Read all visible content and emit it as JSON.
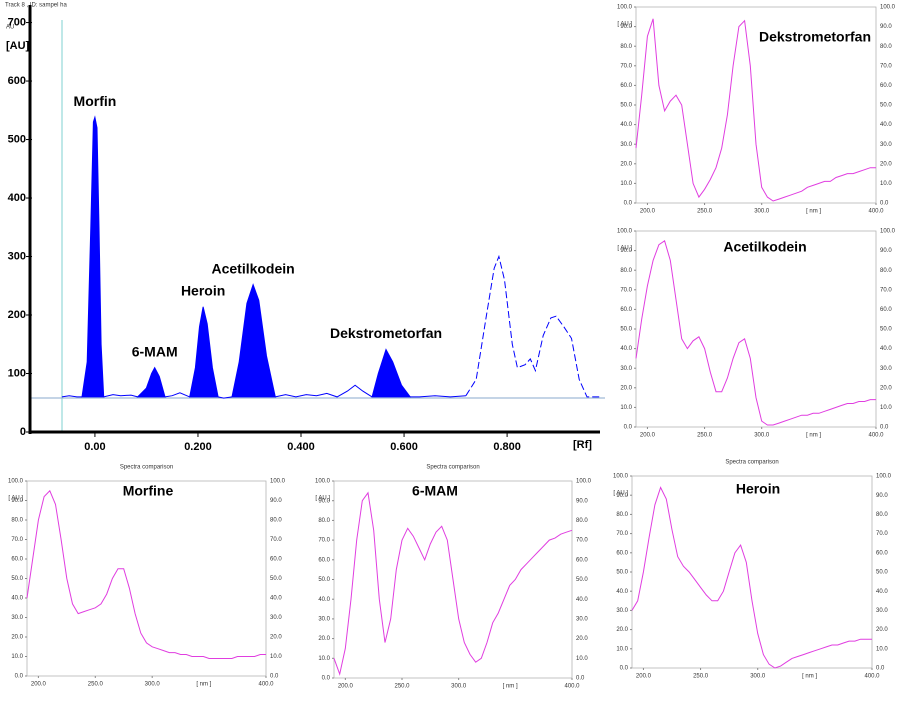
{
  "chart_data": [
    {
      "type": "area",
      "title": "Track 8 , ID: sampel ha",
      "x_label": "[Rf]",
      "y_label": "[AU]",
      "y_unit": "AU",
      "xlim": [
        -0.126,
        0.99
      ],
      "ylim": [
        0,
        730
      ],
      "xticks": [
        {
          "value": 0,
          "label": "0.00"
        },
        {
          "value": 0.2,
          "label": "0.200"
        },
        {
          "value": 0.4,
          "label": "0.400"
        },
        {
          "value": 0.6,
          "label": "0.600"
        },
        {
          "value": 0.8,
          "label": "0.800"
        }
      ],
      "yticks": [
        0,
        100,
        200,
        300,
        400,
        500,
        600,
        700
      ],
      "annotations": [
        "Morfin",
        "6-MAM",
        "Heroin",
        "Acetilkodein",
        "Dekstrometorfan"
      ],
      "series": [
        {
          "style": "fill",
          "color": "#0000ff",
          "x": [
            -0.025,
            -0.015,
            -0.008,
            -0.003,
            0,
            0.004,
            0.008,
            0.012,
            0.017,
            0.05,
            0.083,
            0.1,
            0.11,
            0.116,
            0.125,
            0.136,
            0.16,
            0.184,
            0.195,
            0.203,
            0.21,
            0.218,
            0.228,
            0.239,
            0.25,
            0.266,
            0.28,
            0.295,
            0.307,
            0.318,
            0.333,
            0.35,
            0.45,
            0.538,
            0.55,
            0.565,
            0.578,
            0.595,
            0.612
          ],
          "values": [
            60,
            120,
            350,
            530,
            538,
            520,
            350,
            150,
            60,
            null,
            60,
            75,
            100,
            110,
            95,
            60,
            null,
            60,
            110,
            180,
            214,
            185,
            110,
            60,
            null,
            60,
            120,
            220,
            252,
            225,
            130,
            60,
            null,
            60,
            100,
            141,
            120,
            80,
            60
          ]
        },
        {
          "style": "solid",
          "color": "#0000ff",
          "x": [
            -0.064,
            -0.05,
            -0.035,
            -0.025,
            0,
            0.017,
            0.035,
            0.05,
            0.07,
            0.083,
            0.11,
            0.136,
            0.15,
            0.165,
            0.184,
            0.21,
            0.239,
            0.25,
            0.266,
            0.31,
            0.35,
            0.37,
            0.39,
            0.41,
            0.43,
            0.45,
            0.47,
            0.49,
            0.505,
            0.52,
            0.538,
            0.57,
            0.612,
            0.63,
            0.66,
            0.69,
            0.72
          ],
          "values": [
            60,
            62,
            60,
            60,
            null,
            60,
            64,
            62,
            63,
            60,
            null,
            60,
            62,
            67,
            60,
            null,
            60,
            58,
            60,
            null,
            60,
            64,
            60,
            64,
            62,
            66,
            60,
            70,
            80,
            70,
            60,
            null,
            60,
            60,
            62,
            60,
            62
          ]
        },
        {
          "style": "dashed",
          "color": "#0000ff",
          "x": [
            0.72,
            0.74,
            0.76,
            0.775,
            0.784,
            0.795,
            0.81,
            0.82,
            0.835,
            0.845,
            0.855,
            0.87,
            0.885,
            0.895,
            0.91,
            0.925,
            0.94,
            0.955,
            0.98
          ],
          "values": [
            62,
            90,
            200,
            280,
            300,
            260,
            150,
            110,
            115,
            125,
            105,
            165,
            195,
            198,
            180,
            160,
            90,
            60,
            60
          ]
        }
      ]
    },
    {
      "type": "line",
      "title": "Dekstrometorfan",
      "x_label": "[ nm ]",
      "y_label": "[ AU ]",
      "color": "#e03ee0",
      "xlim": [
        190,
        400
      ],
      "ylim": [
        0,
        100
      ],
      "xticks": [
        {
          "value": 200,
          "label": "200.0"
        },
        {
          "value": 250,
          "label": "250.0"
        },
        {
          "value": 300,
          "label": "300.0"
        },
        {
          "value": 400,
          "label": "400.0"
        }
      ],
      "yticks": [
        {
          "value": 0,
          "label": "0.0"
        },
        {
          "value": 10,
          "label": "10.0"
        },
        {
          "value": 20,
          "label": "20.0"
        },
        {
          "value": 30,
          "label": "30.0"
        },
        {
          "value": 40,
          "label": "40.0"
        },
        {
          "value": 50,
          "label": "50.0"
        },
        {
          "value": 60,
          "label": "60.0"
        },
        {
          "value": 70,
          "label": "70.0"
        },
        {
          "value": 80,
          "label": "80.0"
        },
        {
          "value": 90,
          "label": "90.0"
        },
        {
          "value": 100,
          "label": "100.0"
        }
      ],
      "x": [
        190,
        195,
        200,
        205,
        210,
        215,
        220,
        225,
        230,
        235,
        240,
        245,
        250,
        255,
        260,
        265,
        270,
        275,
        280,
        285,
        290,
        295,
        300,
        305,
        310,
        315,
        320,
        325,
        330,
        335,
        340,
        345,
        350,
        355,
        360,
        365,
        370,
        375,
        380,
        385,
        390,
        395,
        400
      ],
      "values": [
        28,
        55,
        85,
        94,
        60,
        47,
        52,
        55,
        50,
        30,
        10,
        3,
        7,
        12,
        18,
        28,
        45,
        70,
        90,
        93,
        70,
        30,
        8,
        3,
        1,
        2,
        3,
        4,
        5,
        6,
        8,
        9,
        10,
        11,
        11,
        13,
        14,
        15,
        15,
        16,
        17,
        18,
        18
      ]
    },
    {
      "type": "line",
      "title": "Acetilkodein",
      "x_label": "[ nm ]",
      "y_label": "[ AU ]",
      "color": "#e03ee0",
      "xlim": [
        190,
        400
      ],
      "ylim": [
        0,
        100
      ],
      "xticks": [
        {
          "value": 200,
          "label": "200.0"
        },
        {
          "value": 250,
          "label": "250.0"
        },
        {
          "value": 300,
          "label": "300.0"
        },
        {
          "value": 400,
          "label": "400.0"
        }
      ],
      "yticks": [
        {
          "value": 0,
          "label": "0.0"
        },
        {
          "value": 10,
          "label": "10.0"
        },
        {
          "value": 20,
          "label": "20.0"
        },
        {
          "value": 30,
          "label": "30.0"
        },
        {
          "value": 40,
          "label": "40.0"
        },
        {
          "value": 50,
          "label": "50.0"
        },
        {
          "value": 60,
          "label": "60.0"
        },
        {
          "value": 70,
          "label": "70.0"
        },
        {
          "value": 80,
          "label": "80.0"
        },
        {
          "value": 90,
          "label": "90.0"
        },
        {
          "value": 100,
          "label": "100.0"
        }
      ],
      "x": [
        190,
        195,
        200,
        205,
        210,
        215,
        220,
        225,
        230,
        235,
        240,
        245,
        250,
        255,
        260,
        265,
        270,
        275,
        280,
        285,
        290,
        295,
        300,
        305,
        310,
        315,
        320,
        325,
        330,
        335,
        340,
        345,
        350,
        355,
        360,
        365,
        370,
        375,
        380,
        385,
        390,
        395,
        400
      ],
      "values": [
        35,
        55,
        72,
        85,
        93,
        95,
        85,
        65,
        45,
        40,
        44,
        46,
        40,
        28,
        18,
        18,
        25,
        35,
        43,
        45,
        35,
        15,
        3,
        1,
        1,
        2,
        3,
        4,
        5,
        6,
        6,
        7,
        7,
        8,
        9,
        10,
        11,
        12,
        12,
        13,
        13,
        14,
        14
      ]
    },
    {
      "type": "line",
      "title": "Morfine",
      "subtitle": "Spectra comparison",
      "x_label": "[ nm ]",
      "y_label": "[ AU ]",
      "color": "#e03ee0",
      "xlim": [
        190,
        400
      ],
      "ylim": [
        0,
        100
      ],
      "xticks": [
        {
          "value": 200,
          "label": "200.0"
        },
        {
          "value": 250,
          "label": "250.0"
        },
        {
          "value": 300,
          "label": "300.0"
        },
        {
          "value": 400,
          "label": "400.0"
        }
      ],
      "yticks": [
        {
          "value": 0,
          "label": "0.0"
        },
        {
          "value": 10,
          "label": "10.0"
        },
        {
          "value": 20,
          "label": "20.0"
        },
        {
          "value": 30,
          "label": "30.0"
        },
        {
          "value": 40,
          "label": "40.0"
        },
        {
          "value": 50,
          "label": "50.0"
        },
        {
          "value": 60,
          "label": "60.0"
        },
        {
          "value": 70,
          "label": "70.0"
        },
        {
          "value": 80,
          "label": "80.0"
        },
        {
          "value": 90,
          "label": "90.0"
        },
        {
          "value": 100,
          "label": "100.0"
        }
      ],
      "x": [
        190,
        195,
        200,
        205,
        210,
        215,
        220,
        225,
        230,
        235,
        240,
        245,
        250,
        255,
        260,
        265,
        270,
        275,
        280,
        285,
        290,
        295,
        300,
        305,
        310,
        315,
        320,
        325,
        330,
        335,
        340,
        345,
        350,
        355,
        360,
        365,
        370,
        375,
        380,
        385,
        390,
        395,
        400
      ],
      "values": [
        40,
        60,
        80,
        92,
        95,
        88,
        70,
        50,
        37,
        32,
        33,
        34,
        35,
        37,
        42,
        50,
        55,
        55,
        45,
        32,
        22,
        17,
        15,
        14,
        13,
        12,
        12,
        11,
        11,
        10,
        10,
        10,
        9,
        9,
        9,
        9,
        9,
        10,
        10,
        10,
        10,
        11,
        11
      ]
    },
    {
      "type": "line",
      "title": "6-MAM",
      "subtitle": "Spectra comparison",
      "x_label": "[ nm ]",
      "y_label": "[ AU ]",
      "color": "#e03ee0",
      "xlim": [
        190,
        400
      ],
      "ylim": [
        0,
        100
      ],
      "xticks": [
        {
          "value": 200,
          "label": "200.0"
        },
        {
          "value": 250,
          "label": "250.0"
        },
        {
          "value": 300,
          "label": "300.0"
        },
        {
          "value": 400,
          "label": "400.0"
        }
      ],
      "yticks": [
        {
          "value": 0,
          "label": "0.0"
        },
        {
          "value": 10,
          "label": "10.0"
        },
        {
          "value": 20,
          "label": "20.0"
        },
        {
          "value": 30,
          "label": "30.0"
        },
        {
          "value": 40,
          "label": "40.0"
        },
        {
          "value": 50,
          "label": "50.0"
        },
        {
          "value": 60,
          "label": "60.0"
        },
        {
          "value": 70,
          "label": "70.0"
        },
        {
          "value": 80,
          "label": "80.0"
        },
        {
          "value": 90,
          "label": "90.0"
        },
        {
          "value": 100,
          "label": "100.0"
        }
      ],
      "x": [
        190,
        195,
        200,
        205,
        210,
        215,
        220,
        225,
        230,
        235,
        240,
        245,
        250,
        255,
        260,
        265,
        270,
        275,
        280,
        285,
        290,
        295,
        300,
        305,
        310,
        315,
        320,
        325,
        330,
        335,
        340,
        345,
        350,
        355,
        360,
        365,
        370,
        375,
        380,
        385,
        390,
        395,
        400
      ],
      "values": [
        10,
        2,
        15,
        40,
        70,
        90,
        94,
        75,
        40,
        18,
        30,
        55,
        70,
        76,
        72,
        66,
        60,
        68,
        74,
        77,
        70,
        50,
        30,
        18,
        12,
        8,
        10,
        18,
        28,
        33,
        40,
        47,
        50,
        55,
        58,
        61,
        64,
        67,
        70,
        71,
        73,
        74,
        75
      ]
    },
    {
      "type": "line",
      "title": "Heroin",
      "subtitle": "Spectra comparison",
      "x_label": "[ nm ]",
      "y_label": "[ AU ]",
      "color": "#e03ee0",
      "xlim": [
        190,
        400
      ],
      "ylim": [
        0,
        100
      ],
      "xticks": [
        {
          "value": 200,
          "label": "200.0"
        },
        {
          "value": 250,
          "label": "250.0"
        },
        {
          "value": 300,
          "label": "300.0"
        },
        {
          "value": 400,
          "label": "400.0"
        }
      ],
      "yticks": [
        {
          "value": 0,
          "label": "0.0"
        },
        {
          "value": 10,
          "label": "10.0"
        },
        {
          "value": 20,
          "label": "20.0"
        },
        {
          "value": 30,
          "label": "30.0"
        },
        {
          "value": 40,
          "label": "40.0"
        },
        {
          "value": 50,
          "label": "50.0"
        },
        {
          "value": 60,
          "label": "60.0"
        },
        {
          "value": 70,
          "label": "70.0"
        },
        {
          "value": 80,
          "label": "80.0"
        },
        {
          "value": 90,
          "label": "90.0"
        },
        {
          "value": 100,
          "label": "100.0"
        }
      ],
      "x": [
        190,
        195,
        200,
        205,
        210,
        215,
        220,
        225,
        230,
        235,
        240,
        245,
        250,
        255,
        260,
        265,
        270,
        275,
        280,
        285,
        290,
        295,
        300,
        305,
        310,
        315,
        320,
        325,
        330,
        335,
        340,
        345,
        350,
        355,
        360,
        365,
        370,
        375,
        380,
        385,
        390,
        395,
        400
      ],
      "values": [
        30,
        35,
        50,
        68,
        85,
        94,
        88,
        72,
        58,
        53,
        50,
        46,
        42,
        38,
        35,
        35,
        40,
        50,
        60,
        64,
        55,
        35,
        18,
        7,
        2,
        0,
        1,
        3,
        5,
        6,
        7,
        8,
        9,
        10,
        11,
        12,
        12,
        13,
        14,
        14,
        15,
        15,
        15
      ]
    }
  ]
}
